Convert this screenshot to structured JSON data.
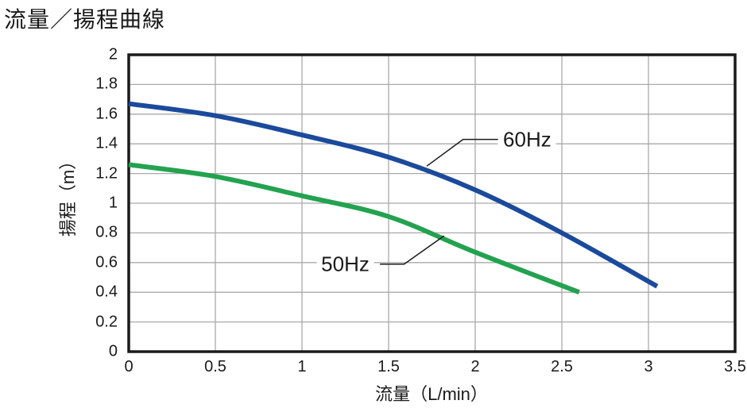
{
  "chart_data": {
    "type": "line",
    "title": "流量／揚程曲線",
    "xlabel": "流量（L/min）",
    "ylabel": "揚程（m）",
    "xlim": [
      0,
      3.5
    ],
    "ylim": [
      0,
      2
    ],
    "grid": true,
    "xticks": [
      {
        "v": 0,
        "label": "0"
      },
      {
        "v": 0.5,
        "label": "0.5"
      },
      {
        "v": 1,
        "label": "1"
      },
      {
        "v": 1.5,
        "label": "1.5"
      },
      {
        "v": 2,
        "label": "2"
      },
      {
        "v": 2.5,
        "label": "2.5"
      },
      {
        "v": 3,
        "label": "3"
      },
      {
        "v": 3.5,
        "label": "3.5"
      }
    ],
    "yticks": [
      {
        "v": 0,
        "label": "0"
      },
      {
        "v": 0.2,
        "label": "0.2"
      },
      {
        "v": 0.4,
        "label": "0.4"
      },
      {
        "v": 0.6,
        "label": "0.6"
      },
      {
        "v": 0.8,
        "label": "0.8"
      },
      {
        "v": 1,
        "label": "1"
      },
      {
        "v": 1.2,
        "label": "1.2"
      },
      {
        "v": 1.4,
        "label": "1.4"
      },
      {
        "v": 1.6,
        "label": "1.6"
      },
      {
        "v": 1.8,
        "label": "1.8"
      },
      {
        "v": 2,
        "label": "2"
      }
    ],
    "series": [
      {
        "name": "60Hz",
        "color": "#1b4a9c",
        "points": [
          [
            0,
            1.67
          ],
          [
            0.5,
            1.59
          ],
          [
            1,
            1.46
          ],
          [
            1.5,
            1.31
          ],
          [
            2,
            1.09
          ],
          [
            2.5,
            0.8
          ],
          [
            3.05,
            0.44
          ]
        ]
      },
      {
        "name": "50Hz",
        "color": "#23a24f",
        "points": [
          [
            0,
            1.26
          ],
          [
            0.5,
            1.18
          ],
          [
            1,
            1.05
          ],
          [
            1.5,
            0.91
          ],
          [
            2,
            0.67
          ],
          [
            2.6,
            0.4
          ]
        ]
      }
    ],
    "annotations": [
      {
        "label": "60Hz",
        "label_center": [
          2.3,
          1.43
        ],
        "leader": [
          [
            1.72,
            1.25
          ],
          [
            1.93,
            1.43
          ],
          [
            2.15,
            1.43
          ]
        ]
      },
      {
        "label": "50Hz",
        "label_center": [
          1.25,
          0.59
        ],
        "leader": [
          [
            1.82,
            0.78
          ],
          [
            1.59,
            0.59
          ],
          [
            1.45,
            0.59
          ]
        ]
      }
    ],
    "colors": {
      "grid": "#a9a9a9",
      "border": "#1a1a1a",
      "leader": "#1a1a1a",
      "text": "#1a1a1a"
    },
    "legend_position": "inline-callouts"
  }
}
